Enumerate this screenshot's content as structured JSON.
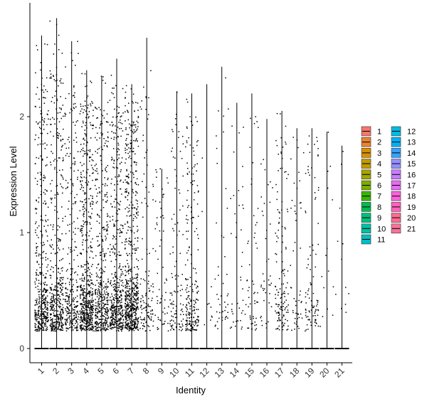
{
  "chart_data": {
    "type": "scatter",
    "subtype": "violin-jitter",
    "xlabel": "Identity",
    "ylabel": "Expression Level",
    "categories": [
      "1",
      "2",
      "3",
      "4",
      "5",
      "6",
      "7",
      "8",
      "9",
      "10",
      "11",
      "12",
      "13",
      "14",
      "15",
      "16",
      "17",
      "18",
      "19",
      "20",
      "21"
    ],
    "yticks": [
      0,
      1,
      2
    ],
    "ylim": [
      -0.1,
      2.95
    ],
    "series": [
      {
        "name": "1",
        "max": 2.7,
        "points": 430
      },
      {
        "name": "2",
        "max": 2.85,
        "points": 440
      },
      {
        "name": "3",
        "max": 2.65,
        "points": 300
      },
      {
        "name": "4",
        "max": 2.4,
        "points": 600
      },
      {
        "name": "5",
        "max": 2.35,
        "points": 430
      },
      {
        "name": "6",
        "max": 2.5,
        "points": 480
      },
      {
        "name": "7",
        "max": 2.28,
        "points": 640
      },
      {
        "name": "8",
        "max": 2.68,
        "points": 120
      },
      {
        "name": "9",
        "max": 1.55,
        "points": 60
      },
      {
        "name": "10",
        "max": 2.22,
        "points": 110
      },
      {
        "name": "11",
        "max": 2.2,
        "points": 210
      },
      {
        "name": "12",
        "max": 2.28,
        "points": 10
      },
      {
        "name": "13",
        "max": 2.43,
        "points": 45
      },
      {
        "name": "14",
        "max": 2.12,
        "points": 40
      },
      {
        "name": "15",
        "max": 2.2,
        "points": 55
      },
      {
        "name": "16",
        "max": 1.98,
        "points": 40
      },
      {
        "name": "17",
        "max": 2.05,
        "points": 140
      },
      {
        "name": "18",
        "max": 1.9,
        "points": 50
      },
      {
        "name": "19",
        "max": 1.9,
        "points": 95
      },
      {
        "name": "20",
        "max": 1.87,
        "points": 15
      },
      {
        "name": "21",
        "max": 1.75,
        "points": 12
      }
    ],
    "legend_position": "right",
    "legend_colors": [
      "#F8766D",
      "#EA8331",
      "#D89000",
      "#C09B00",
      "#A3A500",
      "#7CAE00",
      "#39B600",
      "#00BB4E",
      "#00BF7D",
      "#00C1A3",
      "#00BFC4",
      "#00BAE0",
      "#00B0F6",
      "#35A2FF",
      "#9590FF",
      "#C77CFF",
      "#E76BF3",
      "#FA62DB",
      "#FF62BC",
      "#FF6C91",
      "#F5739A"
    ],
    "grid": false
  }
}
